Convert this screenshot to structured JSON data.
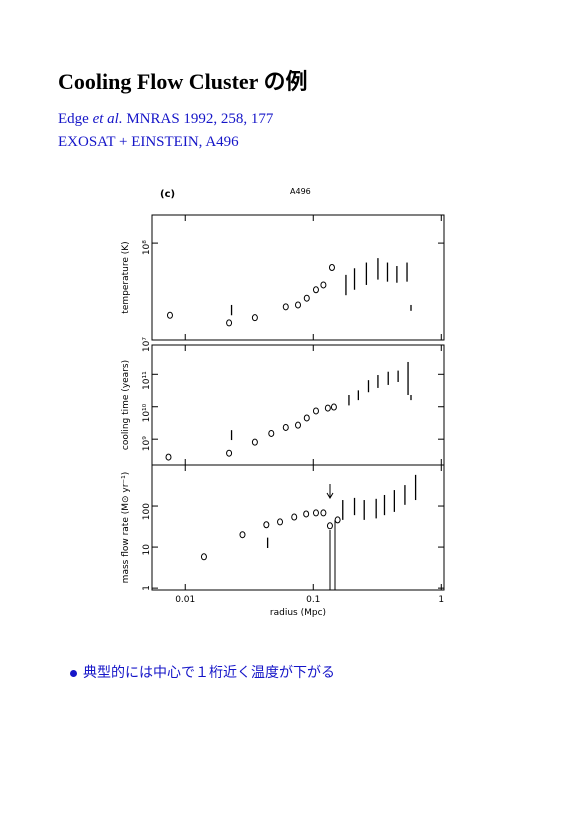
{
  "title": "Cooling Flow Cluster の例",
  "reference": {
    "author": "Edge",
    "etal": "et al.",
    "journal": "MNRAS 1992, 258, 177"
  },
  "dataset": "EXOSAT + EINSTEIN, A496",
  "bullet": "典型的には中心で１桁近く温度が下がる",
  "figure": {
    "panel": "(c)",
    "cluster": "A496"
  },
  "chart_data": [
    {
      "type": "scatter",
      "ylabel": "temperature (K)",
      "log": true,
      "xlim": [
        0.0055,
        1.05
      ],
      "ylim": [
        10000000,
        195000000
      ],
      "yticks": [
        {
          "value": 10000000,
          "label": "10⁷"
        },
        {
          "value": 100000000,
          "label": "10⁸"
        }
      ],
      "points": {
        "x": [
          0.0076,
          0.022,
          0.035,
          0.061,
          0.076,
          0.089,
          0.105,
          0.12,
          0.14
        ],
        "y": [
          18000000,
          15000000,
          17000000,
          22000000,
          23000000,
          27000000,
          33000000,
          37000000,
          56000000
        ]
      },
      "bars": {
        "x": [
          0.023,
          0.18,
          0.21,
          0.26,
          0.32,
          0.38,
          0.45,
          0.54,
          0.58
        ],
        "low": [
          18000000,
          29000000,
          33000000,
          37000000,
          42000000,
          40000000,
          39000000,
          40000000,
          20000000
        ],
        "high": [
          23000000,
          47000000,
          55000000,
          63000000,
          70000000,
          63000000,
          58000000,
          63000000,
          23000000
        ]
      }
    },
    {
      "type": "scatter",
      "ylabel": "cooling time (years)",
      "log": true,
      "xlim": [
        0.0055,
        1.05
      ],
      "ylim": [
        160000000,
        800000000000
      ],
      "yticks": [
        {
          "value": 1000000000,
          "label": "10⁹"
        },
        {
          "value": 10000000000,
          "label": "10¹⁰"
        },
        {
          "value": 100000000000,
          "label": "10¹¹"
        }
      ],
      "points": {
        "x": [
          0.0074,
          0.022,
          0.035,
          0.047,
          0.061,
          0.076,
          0.089,
          0.105,
          0.13,
          0.145
        ],
        "y": [
          280000000,
          370000000,
          810000000,
          1500000000,
          2300000000,
          2700000000,
          4500000000,
          7400000000,
          9100000000,
          9800000000
        ]
      },
      "bars": {
        "x": [
          0.023,
          0.19,
          0.225,
          0.27,
          0.32,
          0.385,
          0.46,
          0.55,
          0.58
        ],
        "low": [
          940000000,
          11000000000,
          16000000000,
          28000000000,
          38000000000,
          47000000000,
          58000000000,
          23000000000,
          16000000000
        ],
        "high": [
          1900000000,
          23000000000,
          32000000000,
          66000000000,
          95000000000,
          120000000000,
          130000000000,
          240000000000,
          23000000000
        ]
      }
    },
    {
      "type": "scatter",
      "ylabel": "mass flow rate (M⊙ yr⁻¹)",
      "xlabel": "radius (Mpc)",
      "log": true,
      "xlim": [
        0.0055,
        1.05
      ],
      "ylim": [
        0.9,
        1000
      ],
      "xticks": [
        0.01,
        0.1,
        1
      ],
      "yticks": [
        1,
        10,
        100
      ],
      "points": {
        "x": [
          0.014,
          0.028,
          0.043,
          0.055,
          0.071,
          0.088,
          0.105,
          0.12,
          0.135,
          0.155
        ],
        "y": [
          5.8,
          20,
          35,
          41,
          54,
          64,
          68,
          68,
          33,
          46
        ]
      },
      "bars": {
        "x": [
          0.044,
          0.17,
          0.21,
          0.25,
          0.31,
          0.36,
          0.43,
          0.52,
          0.63
        ],
        "low": [
          9.5,
          46,
          60,
          46,
          50,
          60,
          72,
          107,
          140
        ],
        "high": [
          17,
          140,
          158,
          140,
          150,
          186,
          245,
          324,
          575
        ]
      }
    }
  ]
}
